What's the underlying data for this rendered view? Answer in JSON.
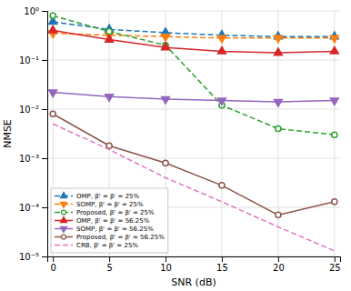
{
  "chart_data": {
    "type": "line",
    "xlabel": "SNR (dB)",
    "ylabel": "NMSE",
    "x": [
      0,
      5,
      10,
      15,
      20,
      25
    ],
    "xlim": [
      -0.5,
      25.5
    ],
    "xticks": [
      0,
      5,
      10,
      15,
      20,
      25
    ],
    "ylim": [
      1e-05,
      1
    ],
    "yticks": [
      {
        "value": 1e-05,
        "label": "10⁻⁵"
      },
      {
        "value": 0.0001,
        "label": "10⁻⁴"
      },
      {
        "value": 0.001,
        "label": "10⁻³"
      },
      {
        "value": 0.01,
        "label": "10⁻²"
      },
      {
        "value": 0.1,
        "label": "10⁻¹"
      },
      {
        "value": 1,
        "label": "10⁰"
      }
    ],
    "log": "y",
    "grid": true,
    "legend": "lower left",
    "series": [
      {
        "name": "OMP, βᵗ = βʳ = 25%",
        "marker": "triangle-up",
        "line_style": "dashed",
        "values": [
          0.6,
          0.42,
          0.36,
          0.32,
          0.3,
          0.3
        ]
      },
      {
        "name": "SOMP, βᵗ = βʳ = 25%",
        "marker": "triangle-down",
        "line_style": "dashed",
        "values": [
          0.35,
          0.32,
          0.3,
          0.28,
          0.28,
          0.28
        ]
      },
      {
        "name": "Proposed, βᵗ = βʳ = 25%",
        "marker": "circle-open",
        "line_style": "dashed",
        "values": [
          0.8,
          0.38,
          0.2,
          0.012,
          0.004,
          0.003
        ]
      },
      {
        "name": "OMP, βᵗ = βʳ = 56.25%",
        "marker": "triangle-up",
        "line_style": "solid",
        "values": [
          0.4,
          0.26,
          0.18,
          0.15,
          0.14,
          0.15
        ]
      },
      {
        "name": "SOMP, βᵗ = βʳ = 56.25%",
        "marker": "triangle-down",
        "line_style": "solid",
        "values": [
          0.022,
          0.018,
          0.016,
          0.015,
          0.014,
          0.015
        ]
      },
      {
        "name": "Proposed, βᵗ = βʳ = 56.25%",
        "marker": "circle-open",
        "line_style": "solid",
        "values": [
          0.008,
          0.0018,
          0.0008,
          0.00028,
          7e-05,
          0.00013
        ]
      },
      {
        "name": "CRB, βᵗ = βʳ = 25%",
        "marker": "none",
        "line_style": "dashed",
        "values": [
          0.005,
          0.0015,
          0.0004,
          0.00013,
          4e-05,
          1.3e-05
        ]
      }
    ]
  }
}
